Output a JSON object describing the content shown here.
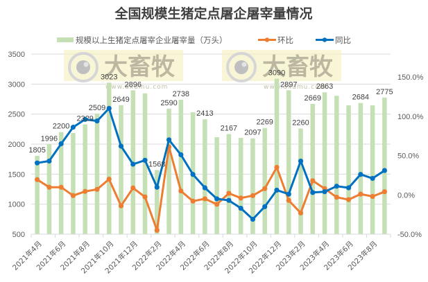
{
  "chart_data": {
    "type": "bar+line",
    "title": "全国规模生猪定点屠企屠宰量情况",
    "legend": [
      {
        "name": "规模以上生猪定点屠宰企业屠宰量（万头）",
        "type": "bar",
        "color": "#c5e0b4"
      },
      {
        "name": "环比",
        "type": "line",
        "color": "#ed7d31"
      },
      {
        "name": "同比",
        "type": "line",
        "color": "#0070c0"
      }
    ],
    "legend_position": "top",
    "categories": [
      "2021年4月",
      "2021年5月",
      "2021年6月",
      "2021年7月",
      "2021年8月",
      "2021年9月",
      "2021年10月",
      "2021年11月",
      "2021年12月",
      "2022年1月",
      "2022年2月",
      "2022年3月",
      "2022年4月",
      "2022年5月",
      "2022年6月",
      "2022年7月",
      "2022年8月",
      "2022年9月",
      "2022年10月",
      "2022年11月",
      "2022年12月",
      "2023年1月",
      "2023年2月",
      "2023年3月",
      "2023年4月",
      "2023年5月",
      "2023年6月",
      "2023年7月",
      "2023年8月",
      "2023年9月"
    ],
    "x_tick_labels": [
      "2021年4月",
      "2021年6月",
      "2021年8月",
      "2021年10月",
      "2021年12月",
      "2022年2月",
      "2022年4月",
      "2022年6月",
      "2022年8月",
      "2022年10月",
      "2022年12月",
      "2023年2月",
      "2023年4月",
      "2023年6月",
      "2023年8月"
    ],
    "series": [
      {
        "name": "规模以上生猪定点屠宰企业屠宰量（万头）",
        "axis": "left",
        "values": [
          1805,
          1996,
          2200,
          2185,
          2329,
          2509,
          3023,
          2649,
          2896,
          2845,
          1568,
          2590,
          2738,
          2530,
          2413,
          2115,
          2167,
          2105,
          2097,
          2269,
          3090,
          2897,
          2260,
          2669,
          2863,
          2805,
          2645,
          2684,
          2645,
          2775
        ]
      },
      {
        "name": "环比",
        "axis": "right",
        "unit": "%",
        "values": [
          19.4,
          9.7,
          9.7,
          -0.9,
          4.4,
          7.0,
          20.0,
          -14.0,
          8.8,
          -2.6,
          -45.0,
          61.0,
          5.0,
          -8.0,
          -5.0,
          -12.0,
          2.0,
          -4.0,
          -1.0,
          8.0,
          35.0,
          -7.0,
          -23.0,
          18.0,
          8.0,
          -3.0,
          -6.0,
          1.0,
          -2.0,
          4.0
        ]
      },
      {
        "name": "同比",
        "axis": "right",
        "unit": "%",
        "values": [
          40.6,
          43.0,
          65.0,
          86.0,
          96.0,
          94.0,
          110.0,
          62.0,
          39.0,
          44.0,
          9.7,
          70.0,
          51.0,
          26.0,
          9.0,
          -5.0,
          -7.0,
          -17.0,
          -31.0,
          -15.0,
          6.0,
          1.0,
          43.0,
          3.0,
          4.0,
          11.0,
          9.0,
          26.0,
          21.0,
          31.0
        ]
      }
    ],
    "data_labels": [
      {
        "index": 0,
        "text": "1805"
      },
      {
        "index": 1,
        "text": "1996"
      },
      {
        "index": 2,
        "text": "2200"
      },
      {
        "index": 4,
        "text": "2329"
      },
      {
        "index": 5,
        "text": "2509"
      },
      {
        "index": 6,
        "text": "3023"
      },
      {
        "index": 7,
        "text": "2649"
      },
      {
        "index": 8,
        "text": "2896"
      },
      {
        "index": 10,
        "text": "1568"
      },
      {
        "index": 11,
        "text": "2590"
      },
      {
        "index": 12,
        "text": "2738"
      },
      {
        "index": 14,
        "text": "2413"
      },
      {
        "index": 16,
        "text": "2167"
      },
      {
        "index": 18,
        "text": "2097"
      },
      {
        "index": 19,
        "text": "2269"
      },
      {
        "index": 20,
        "text": "3090"
      },
      {
        "index": 21,
        "text": "2897"
      },
      {
        "index": 22,
        "text": "2260"
      },
      {
        "index": 23,
        "text": "2669"
      },
      {
        "index": 24,
        "text": "2863"
      },
      {
        "index": 27,
        "text": "2684"
      },
      {
        "index": 29,
        "text": "2775"
      }
    ],
    "left_axis": {
      "min": 500,
      "max": 3500,
      "ticks": [
        "500",
        "1000",
        "1500",
        "2000",
        "2500",
        "3000",
        "3500"
      ]
    },
    "right_axis": {
      "min": -50,
      "max": 150,
      "ticks": [
        "-50.0%",
        "0.0%",
        "50.0%",
        "100.0%",
        "150.0%"
      ]
    },
    "grid": true,
    "xlabel": "",
    "ylabel": ""
  },
  "watermarks": [
    {
      "text": "大畜牧",
      "url": "www.dxumu.com"
    },
    {
      "text": "大畜牧",
      "url": "www.dxumu.com"
    }
  ]
}
